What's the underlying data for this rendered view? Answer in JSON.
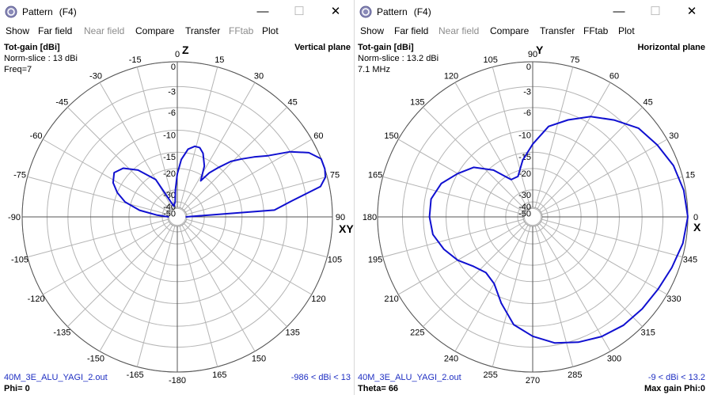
{
  "left": {
    "title": "Pattern",
    "title_key": "(F4)",
    "menu": [
      {
        "label": "Show",
        "enabled": true
      },
      {
        "label": "Far field",
        "enabled": true
      },
      {
        "label": "Near field",
        "enabled": false
      },
      {
        "label": "Compare",
        "enabled": true
      },
      {
        "label": "Transfer",
        "enabled": true
      },
      {
        "label": "FFtab",
        "enabled": false
      },
      {
        "label": "Plot",
        "enabled": true
      }
    ],
    "gain_title": "Tot-gain [dBi]",
    "norm": "Norm-slice : 13 dBi",
    "freq": "Freq=7",
    "plane": "Vertical plane",
    "axis_top": "Z",
    "axis_right": "XY",
    "angle_labels": [
      "0",
      "15",
      "30",
      "45",
      "60",
      "75",
      "90",
      "105",
      "120",
      "135",
      "150",
      "165",
      "-180",
      "-165",
      "-150",
      "-135",
      "-120",
      "-105",
      "-90",
      "-75",
      "-60",
      "-45",
      "-30",
      "-15"
    ],
    "ring_labels": [
      "0",
      "-3",
      "-6",
      "-10",
      "-15",
      "-20",
      "-30",
      "-40",
      "-50"
    ],
    "file": "40M_3E_ALU_YAGI_2.out",
    "range": "-986 < dBi < 13",
    "footer": "Phi= 0"
  },
  "right": {
    "title": "Pattern",
    "title_key": "(F4)",
    "menu": [
      {
        "label": "Show",
        "enabled": true
      },
      {
        "label": "Far field",
        "enabled": true
      },
      {
        "label": "Near field",
        "enabled": false
      },
      {
        "label": "Compare",
        "enabled": true
      },
      {
        "label": "Transfer",
        "enabled": true
      },
      {
        "label": "FFtab",
        "enabled": true
      },
      {
        "label": "Plot",
        "enabled": true
      }
    ],
    "gain_title": "Tot-gain [dBi]",
    "norm": "Norm-slice : 13.2 dBi",
    "freq": "7.1 MHz",
    "plane": "Horizontal plane",
    "axis_top": "Y",
    "axis_right": "X",
    "angle_labels": [
      "0",
      "15",
      "30",
      "45",
      "60",
      "75",
      "90",
      "105",
      "120",
      "135",
      "150",
      "165",
      "180",
      "195",
      "210",
      "225",
      "240",
      "255",
      "270",
      "285",
      "300",
      "315",
      "330",
      "345"
    ],
    "ring_labels": [
      "0",
      "-3",
      "-6",
      "-10",
      "-15",
      "-20",
      "-30",
      "-40",
      "-50"
    ],
    "file": "40M_3E_ALU_YAGI_2.out",
    "range": "-9 < dBi < 13.2",
    "footer_left": "Theta= 66",
    "footer_right": "Max gain Phi:0"
  },
  "style": {
    "curve_color": "#1010d0",
    "grid_color": "#b4b4b4",
    "text_blue": "#1f2fc2"
  },
  "chart_data": [
    {
      "type": "polar-line",
      "title": "Vertical plane",
      "angle_unit": "degrees from Z",
      "radial_unit": "dB",
      "radial_ticks": [
        0,
        -3,
        -6,
        -10,
        -15,
        -20,
        -30,
        -40,
        -50
      ],
      "series": [
        {
          "values": [
            [
              90,
              -50
            ],
            [
              86,
              -8
            ],
            [
              82,
              -5
            ],
            [
              78,
              -1
            ],
            [
              75,
              -0.2
            ],
            [
              72,
              0
            ],
            [
              68,
              0
            ],
            [
              64,
              -1
            ],
            [
              60,
              -3
            ],
            [
              56,
              -6
            ],
            [
              52,
              -8
            ],
            [
              48,
              -10
            ],
            [
              44,
              -12
            ],
            [
              40,
              -15
            ],
            [
              36,
              -18
            ],
            [
              33,
              -22
            ],
            [
              28,
              -17
            ],
            [
              22,
              -14
            ],
            [
              18,
              -13
            ],
            [
              14,
              -13
            ],
            [
              9,
              -14
            ],
            [
              4,
              -17
            ],
            [
              0,
              -22
            ],
            [
              -4,
              -30
            ],
            [
              -8,
              -40
            ],
            [
              -18,
              -45
            ],
            [
              -30,
              -22
            ],
            [
              -40,
              -16
            ],
            [
              -48,
              -13
            ],
            [
              -55,
              -12
            ],
            [
              -62,
              -13
            ],
            [
              -68,
              -15
            ],
            [
              -74,
              -18
            ],
            [
              -80,
              -24
            ],
            [
              -85,
              -35
            ],
            [
              -90,
              -50
            ]
          ]
        }
      ]
    },
    {
      "type": "polar-line",
      "title": "Horizontal plane",
      "angle_unit": "degrees azimuth",
      "radial_unit": "dB",
      "radial_ticks": [
        0,
        -3,
        -6,
        -10,
        -15,
        -20,
        -30,
        -40,
        -50
      ],
      "series": [
        {
          "values": [
            [
              0,
              0
            ],
            [
              10,
              -0.2
            ],
            [
              20,
              -0.6
            ],
            [
              30,
              -1.3
            ],
            [
              40,
              -2
            ],
            [
              50,
              -3.5
            ],
            [
              60,
              -5
            ],
            [
              70,
              -7
            ],
            [
              80,
              -9
            ],
            [
              90,
              -13
            ],
            [
              100,
              -17
            ],
            [
              110,
              -22
            ],
            [
              120,
              -22
            ],
            [
              130,
              -16
            ],
            [
              140,
              -12
            ],
            [
              150,
              -10
            ],
            [
              160,
              -8
            ],
            [
              170,
              -7
            ],
            [
              180,
              -7
            ],
            [
              190,
              -7.3
            ],
            [
              200,
              -8.5
            ],
            [
              210,
              -10
            ],
            [
              220,
              -12
            ],
            [
              230,
              -13
            ],
            [
              240,
              -12
            ],
            [
              250,
              -9
            ],
            [
              260,
              -6
            ],
            [
              270,
              -4.5
            ],
            [
              280,
              -3.3
            ],
            [
              290,
              -2.6
            ],
            [
              300,
              -2
            ],
            [
              310,
              -1.6
            ],
            [
              320,
              -1.4
            ],
            [
              330,
              -1.2
            ],
            [
              340,
              -0.8
            ],
            [
              350,
              -0.3
            ],
            [
              360,
              0
            ]
          ]
        }
      ]
    }
  ]
}
